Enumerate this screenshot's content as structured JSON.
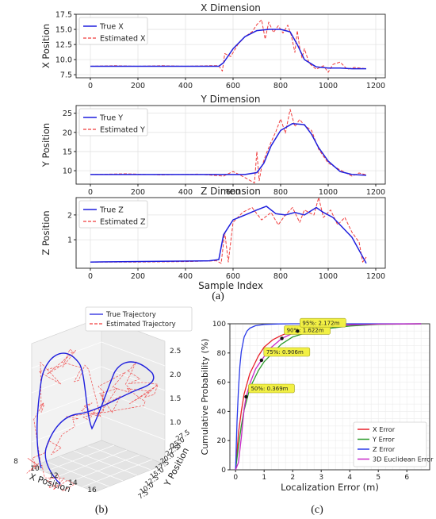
{
  "figure_labels": {
    "a": "(a)",
    "b": "(b)",
    "c": "(c)"
  },
  "colors": {
    "true": "#1f1fdd",
    "est": "#f03c3c",
    "x_err": "#e8202a",
    "y_err": "#2a9a2a",
    "z_err": "#2a3ae8",
    "euc_err": "#c828c8",
    "annot_bg": "#f2f044",
    "annot_border": "#a0a020"
  },
  "chart_data": [
    {
      "id": "x_dim",
      "type": "line",
      "title": "X Dimension",
      "xlabel": "",
      "ylabel": "X Position",
      "xlim": [
        -60,
        1240
      ],
      "ylim": [
        7.0,
        17.5
      ],
      "xticks": [
        0,
        200,
        400,
        600,
        800,
        1000,
        1200
      ],
      "yticks": [
        7.5,
        10.0,
        12.5,
        15.0,
        17.5
      ],
      "ytick_labels": [
        "7.5",
        "10.0",
        "12.5",
        "15.0",
        "17.5"
      ],
      "grid": true,
      "legend": "top-left",
      "series": [
        {
          "name": "True X",
          "style": "solid",
          "x": [
            0,
            540,
            560,
            600,
            650,
            700,
            750,
            800,
            840,
            870,
            900,
            950,
            1000,
            1050,
            1100,
            1160
          ],
          "y": [
            8.9,
            8.9,
            9.5,
            11.8,
            13.8,
            14.8,
            15.0,
            15.0,
            14.6,
            12.5,
            10.0,
            8.8,
            8.6,
            8.6,
            8.5,
            8.5
          ]
        },
        {
          "name": "Estimated X",
          "style": "dashed",
          "x": [
            0,
            100,
            200,
            300,
            400,
            500,
            540,
            555,
            565,
            590,
            620,
            650,
            680,
            700,
            720,
            735,
            750,
            770,
            790,
            810,
            830,
            845,
            860,
            870,
            880,
            890,
            900,
            920,
            950,
            980,
            1000,
            1020,
            1050,
            1080,
            1110,
            1160
          ],
          "y": [
            8.9,
            9.0,
            8.9,
            9.0,
            8.9,
            9.0,
            9.0,
            8.1,
            11.0,
            10.5,
            12.5,
            13.8,
            14.6,
            15.8,
            16.6,
            13.4,
            16.2,
            14.5,
            15.6,
            14.4,
            15.7,
            14.0,
            11.2,
            14.8,
            12.0,
            10.3,
            11.8,
            9.4,
            8.4,
            9.0,
            7.9,
            9.2,
            9.6,
            8.4,
            8.7,
            8.5
          ]
        }
      ]
    },
    {
      "id": "y_dim",
      "type": "line",
      "title": "Y Dimension",
      "xlabel": "",
      "ylabel": "Y Position",
      "xlim": [
        -60,
        1240
      ],
      "ylim": [
        6.5,
        27
      ],
      "xticks": [
        0,
        200,
        400,
        600,
        800,
        1000,
        1200
      ],
      "yticks": [
        10,
        15,
        20,
        25
      ],
      "ytick_labels": [
        "10",
        "15",
        "20",
        "25"
      ],
      "grid": true,
      "legend": "top-left",
      "series": [
        {
          "name": "True Y",
          "style": "solid",
          "x": [
            0,
            600,
            650,
            700,
            730,
            760,
            800,
            850,
            900,
            930,
            960,
            1000,
            1050,
            1100,
            1160
          ],
          "y": [
            9.0,
            9.0,
            9.0,
            9.5,
            12.0,
            16.5,
            20.5,
            22.3,
            22.0,
            19.5,
            16.0,
            12.5,
            9.8,
            9.0,
            8.8
          ]
        },
        {
          "name": "Estimated Y",
          "style": "dashed",
          "x": [
            0,
            150,
            300,
            450,
            560,
            600,
            650,
            690,
            700,
            710,
            720,
            740,
            760,
            780,
            800,
            820,
            840,
            860,
            880,
            900,
            930,
            960,
            1000,
            1050,
            1100,
            1130,
            1160
          ],
          "y": [
            9.0,
            9.2,
            8.9,
            9.1,
            8.6,
            9.8,
            8.2,
            6.8,
            15.0,
            7.4,
            11.0,
            14.5,
            17.5,
            20.2,
            23.5,
            19.8,
            26.0,
            21.5,
            23.4,
            21.8,
            20.5,
            15.6,
            12.0,
            10.2,
            8.6,
            9.4,
            8.9
          ]
        }
      ]
    },
    {
      "id": "z_dim",
      "type": "line",
      "title": "Z Dimension",
      "xlabel": "Sample Index",
      "ylabel": "Z Position",
      "xlim": [
        -60,
        1240
      ],
      "ylim": [
        -0.15,
        2.7
      ],
      "xticks": [
        0,
        200,
        400,
        600,
        800,
        1000,
        1200
      ],
      "yticks": [
        1,
        2
      ],
      "ytick_labels": [
        "1",
        "2"
      ],
      "grid": true,
      "legend": "top-left",
      "series": [
        {
          "name": "True Z",
          "style": "solid",
          "x": [
            0,
            500,
            540,
            560,
            600,
            650,
            700,
            740,
            780,
            820,
            860,
            900,
            950,
            980,
            1020,
            1060,
            1100,
            1140,
            1160
          ],
          "y": [
            0.1,
            0.15,
            0.2,
            1.2,
            1.8,
            2.0,
            2.2,
            2.35,
            2.05,
            2.0,
            2.1,
            2.0,
            2.3,
            2.1,
            1.9,
            1.5,
            1.1,
            0.4,
            0.05
          ]
        },
        {
          "name": "Estimated Z",
          "style": "dashed",
          "x": [
            0,
            200,
            400,
            530,
            550,
            565,
            580,
            600,
            640,
            680,
            720,
            760,
            790,
            820,
            850,
            880,
            900,
            940,
            960,
            980,
            1010,
            1040,
            1070,
            1100,
            1130,
            1145,
            1160
          ],
          "y": [
            0.1,
            0.1,
            0.12,
            0.15,
            0.05,
            1.3,
            0.1,
            1.7,
            2.1,
            2.3,
            1.8,
            2.1,
            1.6,
            2.0,
            2.3,
            1.7,
            2.2,
            2.0,
            2.7,
            1.9,
            2.2,
            1.6,
            1.9,
            1.3,
            0.9,
            0.1,
            0.3
          ]
        }
      ]
    },
    {
      "id": "trajectory_3d",
      "type": "scatter",
      "title": "",
      "xlabel": "X Position",
      "ylabel": "Y Position",
      "x_tick_labels": [
        "8",
        "10",
        "12",
        "14",
        "16"
      ],
      "y_tick_labels": [
        "7.5",
        "10.0",
        "12.5",
        "15.0",
        "17.5",
        "20.0",
        "22.5",
        "25.0",
        "27.5"
      ],
      "z_tick_labels": [
        "0.5",
        "1.0",
        "1.5",
        "2.0",
        "2.5"
      ],
      "legend": "top",
      "series": [
        {
          "name": "True Trajectory",
          "style": "solid"
        },
        {
          "name": "Estimated Trajectory",
          "style": "dashed"
        }
      ]
    },
    {
      "id": "cdf",
      "type": "line",
      "title": "",
      "xlabel": "Localization Error (m)",
      "ylabel": "Cumulative Probability (%)",
      "xlim": [
        -0.2,
        6.8
      ],
      "ylim": [
        0,
        100
      ],
      "xticks": [
        0,
        1,
        2,
        3,
        4,
        5,
        6
      ],
      "yticks": [
        0,
        20,
        40,
        60,
        80,
        100
      ],
      "grid": true,
      "legend": "bottom-right",
      "series": [
        {
          "name": "X Error",
          "x": [
            0,
            0.1,
            0.2,
            0.3,
            0.5,
            0.8,
            1.0,
            1.3,
            1.6,
            2.0,
            2.5,
            3.0,
            4.0,
            5.0,
            6.5
          ],
          "y": [
            0,
            25,
            40,
            52,
            66,
            78,
            84,
            89,
            92,
            95,
            97,
            98.3,
            99.3,
            99.8,
            100
          ]
        },
        {
          "name": "Y Error",
          "x": [
            0,
            0.1,
            0.2,
            0.3,
            0.5,
            0.8,
            1.0,
            1.3,
            1.6,
            2.0,
            2.5,
            3.0,
            4.0,
            5.0,
            6.5
          ],
          "y": [
            0,
            16,
            30,
            41,
            56,
            68,
            74,
            80,
            86,
            91,
            94,
            96.3,
            98.5,
            99.6,
            100
          ]
        },
        {
          "name": "Z Error",
          "x": [
            0,
            0.05,
            0.1,
            0.15,
            0.2,
            0.3,
            0.4,
            0.5,
            0.7,
            1.0,
            1.5,
            2.0,
            6.5
          ],
          "y": [
            0,
            33,
            55,
            71,
            81,
            91,
            95,
            97,
            98.7,
            99.5,
            99.9,
            100,
            100
          ]
        },
        {
          "name": "3D Euclidean Error",
          "x": [
            0,
            0.1,
            0.2,
            0.3,
            0.369,
            0.5,
            0.7,
            0.906,
            1.2,
            1.622,
            2.172,
            3.0,
            4.0,
            5.0,
            6.5
          ],
          "y": [
            0,
            5,
            22,
            42,
            50,
            59,
            69,
            75,
            83,
            90,
            95,
            97.7,
            99.2,
            99.8,
            100
          ]
        }
      ],
      "annotations": [
        {
          "text": "50%:  0.369m",
          "x": 0.369,
          "y": 50
        },
        {
          "text": "75%:  0.906m",
          "x": 0.906,
          "y": 75
        },
        {
          "text": "90%:  1.622m",
          "x": 1.622,
          "y": 90
        },
        {
          "text": "95%:  2.172m",
          "x": 2.172,
          "y": 95
        }
      ]
    }
  ]
}
